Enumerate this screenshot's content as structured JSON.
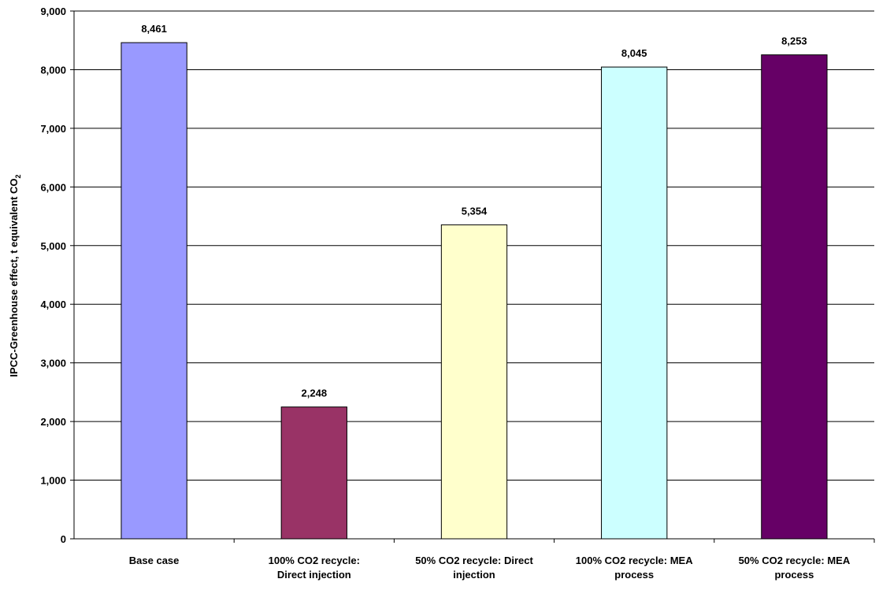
{
  "chart_data": {
    "type": "bar",
    "categories": [
      [
        "Base case"
      ],
      [
        "100% CO2 recycle:",
        "Direct injection"
      ],
      [
        "50% CO2 recycle: Direct",
        "injection"
      ],
      [
        "100% CO2 recycle: MEA",
        "process"
      ],
      [
        "50% CO2 recycle: MEA",
        "process"
      ]
    ],
    "values": [
      8461,
      2248,
      5354,
      8045,
      8253
    ],
    "value_labels": [
      "8,461",
      "2,248",
      "5,354",
      "8,045",
      "8,253"
    ],
    "bar_colors": [
      "#9999ff",
      "#993366",
      "#ffffcc",
      "#ccffff",
      "#660066"
    ],
    "ylabel": {
      "main": "IPCC-Greenhouse effect, t equivalent CO",
      "subscript": "2"
    },
    "ylim": [
      0,
      9000
    ],
    "yticks": [
      0,
      1000,
      2000,
      3000,
      4000,
      5000,
      6000,
      7000,
      8000,
      9000
    ],
    "ytick_labels": [
      "0",
      "1,000",
      "2,000",
      "3,000",
      "4,000",
      "5,000",
      "6,000",
      "7,000",
      "8,000",
      "9,000"
    ],
    "grid": true,
    "legend": "none",
    "title": "",
    "xlabel": ""
  }
}
